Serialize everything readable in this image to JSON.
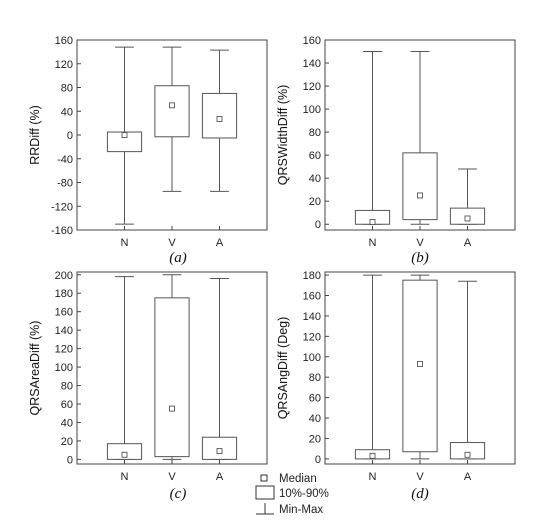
{
  "chart_data": [
    {
      "type": "box",
      "panel": "(a)",
      "ylabel": "RRDiff (%)",
      "categories": [
        "N",
        "V",
        "A"
      ],
      "yticks": [
        -160,
        -120,
        -80,
        -40,
        0,
        40,
        80,
        120,
        160
      ],
      "ylim": [
        -160,
        160
      ],
      "boxes": [
        {
          "min": -150,
          "p10": -28,
          "median": 0,
          "p90": 5,
          "max": 148
        },
        {
          "min": -95,
          "p10": -3,
          "median": 50,
          "p90": 83,
          "max": 148
        },
        {
          "min": -95,
          "p10": -5,
          "median": 27,
          "p90": 70,
          "max": 143
        }
      ]
    },
    {
      "type": "box",
      "panel": "(b)",
      "ylabel": "QRSWidthDiff (%)",
      "categories": [
        "N",
        "V",
        "A"
      ],
      "yticks": [
        0,
        20,
        40,
        60,
        80,
        100,
        120,
        140,
        160
      ],
      "ylim": [
        -5,
        160
      ],
      "boxes": [
        {
          "min": 0,
          "p10": 0,
          "median": 2,
          "p90": 12,
          "max": 150
        },
        {
          "min": 0,
          "p10": 4,
          "median": 25,
          "p90": 62,
          "max": 150
        },
        {
          "min": 0,
          "p10": 0,
          "median": 5,
          "p90": 14,
          "max": 48
        }
      ]
    },
    {
      "type": "box",
      "panel": "(c)",
      "ylabel": "QRSAreaDiff (%)",
      "categories": [
        "N",
        "V",
        "A"
      ],
      "yticks": [
        0,
        20,
        40,
        60,
        80,
        100,
        120,
        140,
        160,
        180,
        200
      ],
      "ylim": [
        -5,
        203
      ],
      "boxes": [
        {
          "min": 0,
          "p10": 0,
          "median": 5,
          "p90": 17,
          "max": 198
        },
        {
          "min": 0,
          "p10": 3,
          "median": 55,
          "p90": 175,
          "max": 200
        },
        {
          "min": 0,
          "p10": 0,
          "median": 9,
          "p90": 24,
          "max": 196
        }
      ]
    },
    {
      "type": "box",
      "panel": "(d)",
      "ylabel": "QRSAngDiff (Deg)",
      "categories": [
        "N",
        "V",
        "A"
      ],
      "yticks": [
        0,
        20,
        40,
        60,
        80,
        100,
        120,
        140,
        160,
        180
      ],
      "ylim": [
        -5,
        183
      ],
      "boxes": [
        {
          "min": 0,
          "p10": 0,
          "median": 3,
          "p90": 9,
          "max": 180
        },
        {
          "min": 0,
          "p10": 7,
          "median": 93,
          "p90": 175,
          "max": 180
        },
        {
          "min": 0,
          "p10": 0,
          "median": 4,
          "p90": 16,
          "max": 174
        }
      ]
    }
  ],
  "legend": {
    "median": "Median",
    "range": "10%-90%",
    "minmax": "Min-Max"
  }
}
